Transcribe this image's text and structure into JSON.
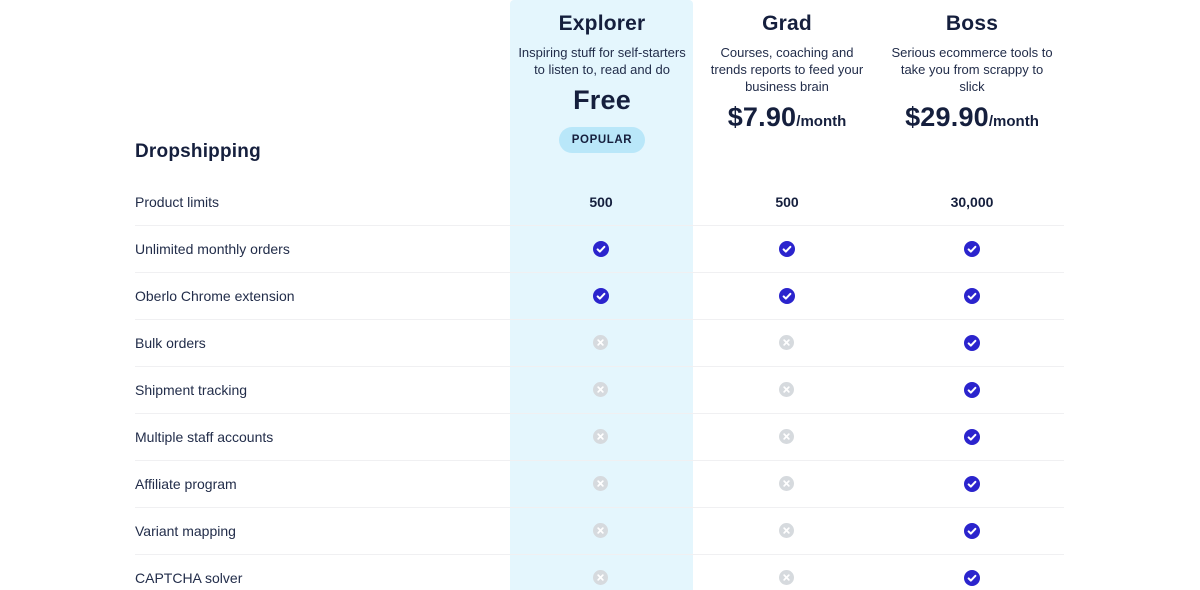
{
  "colors": {
    "navy": "#151f3d",
    "text": "#222d4a",
    "highlight": "#e4f6fd",
    "badge_bg": "#b9e7f9",
    "check_blue": "#2b24cd",
    "cross_gray": "#d6dade",
    "divider": "#f0f0f2"
  },
  "plans": [
    {
      "name": "Explorer",
      "description": "Inspiring stuff for self-starters to listen to, read and do",
      "price": "Free",
      "price_suffix": "",
      "badge": "POPULAR"
    },
    {
      "name": "Grad",
      "description": "Courses, coaching and trends reports to feed your business brain",
      "price": "$7.90",
      "price_suffix": "/month"
    },
    {
      "name": "Boss",
      "description": "Serious ecommerce tools to take you from scrappy to slick",
      "price": "$29.90",
      "price_suffix": "/month"
    }
  ],
  "section": {
    "title": "Dropshipping"
  },
  "features": [
    {
      "label": "Product limits",
      "values": [
        {
          "type": "text",
          "text": "500"
        },
        {
          "type": "text",
          "text": "500"
        },
        {
          "type": "text",
          "text": "30,000"
        }
      ]
    },
    {
      "label": "Unlimited monthly orders",
      "values": [
        {
          "type": "check"
        },
        {
          "type": "check"
        },
        {
          "type": "check"
        }
      ]
    },
    {
      "label": "Oberlo Chrome extension",
      "values": [
        {
          "type": "check"
        },
        {
          "type": "check"
        },
        {
          "type": "check"
        }
      ]
    },
    {
      "label": "Bulk orders",
      "values": [
        {
          "type": "cross"
        },
        {
          "type": "cross"
        },
        {
          "type": "check"
        }
      ]
    },
    {
      "label": "Shipment tracking",
      "values": [
        {
          "type": "cross"
        },
        {
          "type": "cross"
        },
        {
          "type": "check"
        }
      ]
    },
    {
      "label": "Multiple staff accounts",
      "values": [
        {
          "type": "cross"
        },
        {
          "type": "cross"
        },
        {
          "type": "check"
        }
      ]
    },
    {
      "label": "Affiliate program",
      "values": [
        {
          "type": "cross"
        },
        {
          "type": "cross"
        },
        {
          "type": "check"
        }
      ]
    },
    {
      "label": "Variant mapping",
      "values": [
        {
          "type": "cross"
        },
        {
          "type": "cross"
        },
        {
          "type": "check"
        }
      ]
    },
    {
      "label": "CAPTCHA solver",
      "values": [
        {
          "type": "cross"
        },
        {
          "type": "cross"
        },
        {
          "type": "check"
        }
      ]
    }
  ]
}
